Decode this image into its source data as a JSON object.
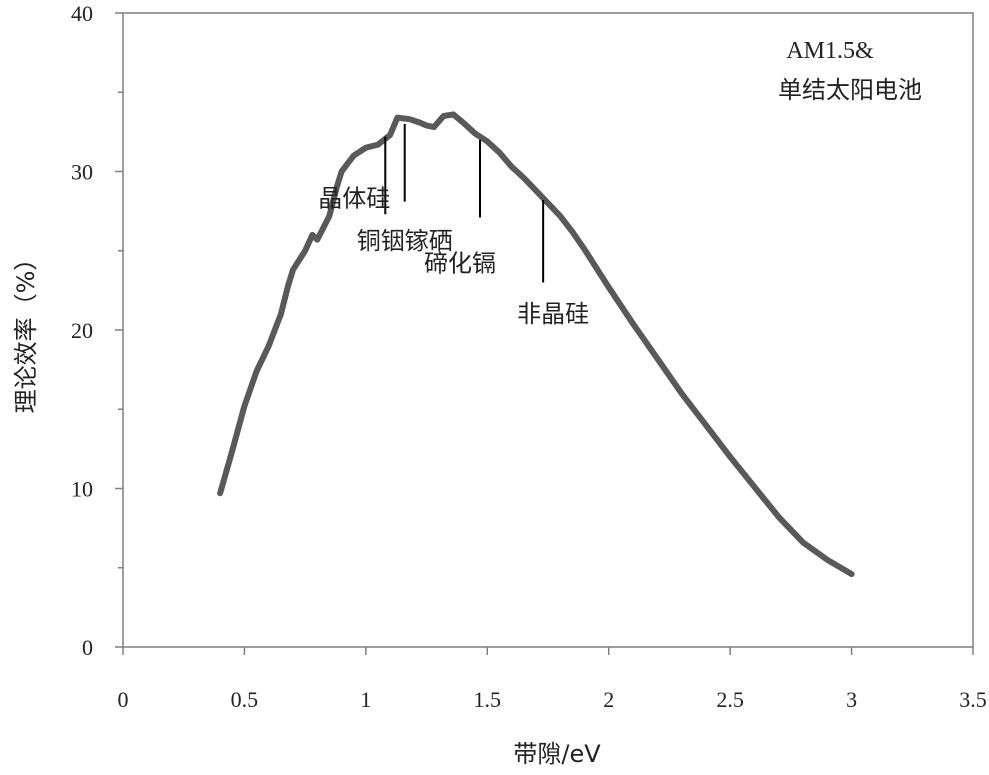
{
  "chart_data": {
    "type": "line",
    "xlabel": "带隙/eV",
    "ylabel": "理论效率（%）",
    "xlim": [
      0,
      3.5
    ],
    "ylim": [
      0,
      40
    ],
    "xticks": [
      0,
      0.5,
      1,
      1.5,
      2,
      2.5,
      3,
      3.5
    ],
    "xtick_labels": [
      "0",
      "0.5",
      "1",
      "1.5",
      "2",
      "2.5",
      "3",
      "3.5"
    ],
    "yticks": [
      0,
      10,
      20,
      30,
      40
    ],
    "ytick_labels": [
      "0",
      "10",
      "20",
      "30",
      "40"
    ],
    "grid": false,
    "legend_text": [
      "AM1.5&",
      "单结太阳电池"
    ],
    "series": [
      {
        "color": "#595959",
        "points": [
          [
            0.4,
            9.7
          ],
          [
            0.45,
            12.4
          ],
          [
            0.5,
            15.2
          ],
          [
            0.55,
            17.4
          ],
          [
            0.6,
            19.0
          ],
          [
            0.65,
            21.0
          ],
          [
            0.68,
            22.8
          ],
          [
            0.7,
            23.8
          ],
          [
            0.75,
            25.0
          ],
          [
            0.78,
            26.0
          ],
          [
            0.8,
            25.7
          ],
          [
            0.85,
            27.2
          ],
          [
            0.88,
            29.0
          ],
          [
            0.9,
            30.0
          ],
          [
            0.95,
            31.0
          ],
          [
            1.0,
            31.5
          ],
          [
            1.05,
            31.7
          ],
          [
            1.1,
            32.3
          ],
          [
            1.13,
            33.4
          ],
          [
            1.18,
            33.3
          ],
          [
            1.22,
            33.1
          ],
          [
            1.25,
            32.9
          ],
          [
            1.28,
            32.8
          ],
          [
            1.32,
            33.5
          ],
          [
            1.36,
            33.6
          ],
          [
            1.4,
            33.1
          ],
          [
            1.45,
            32.4
          ],
          [
            1.5,
            31.9
          ],
          [
            1.55,
            31.2
          ],
          [
            1.6,
            30.3
          ],
          [
            1.65,
            29.6
          ],
          [
            1.7,
            28.8
          ],
          [
            1.75,
            28.0
          ],
          [
            1.8,
            27.2
          ],
          [
            1.85,
            26.2
          ],
          [
            1.9,
            25.1
          ],
          [
            2.0,
            22.7
          ],
          [
            2.1,
            20.4
          ],
          [
            2.2,
            18.2
          ],
          [
            2.3,
            16.0
          ],
          [
            2.4,
            14.0
          ],
          [
            2.5,
            12.0
          ],
          [
            2.6,
            10.1
          ],
          [
            2.7,
            8.2
          ],
          [
            2.8,
            6.6
          ],
          [
            2.9,
            5.5
          ],
          [
            3.0,
            4.6
          ]
        ]
      }
    ],
    "annotations": [
      {
        "text": "晶体硅",
        "bandgap": 1.08
      },
      {
        "text": "铜铟镓硒",
        "bandgap": 1.16
      },
      {
        "text": "碲化镉",
        "bandgap": 1.47
      },
      {
        "text": "非晶硅",
        "bandgap": 1.73
      }
    ]
  }
}
